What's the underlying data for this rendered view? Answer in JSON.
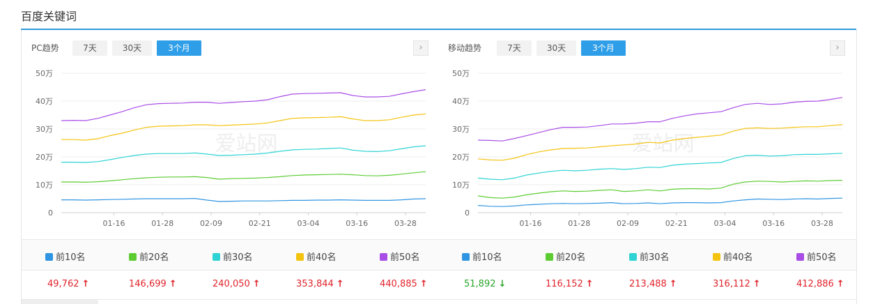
{
  "page": {
    "title": "百度关键词"
  },
  "colors": {
    "accent": "#2d9ad9",
    "up": "#e0232b",
    "down": "#2aa52a"
  },
  "watermark": "爱站网",
  "chart_data": [
    {
      "type": "line",
      "heading": "PC趋势",
      "tabs": [
        {
          "label": "7天",
          "active": false
        },
        {
          "label": "30天",
          "active": false
        },
        {
          "label": "3个月",
          "active": true
        }
      ],
      "next_icon": "chevron-right-icon",
      "ylim": [
        0,
        50
      ],
      "yticks": [
        "0",
        "10万",
        "20万",
        "30万",
        "40万",
        "50万"
      ],
      "xlim": [
        0,
        90
      ],
      "xticks": [
        {
          "x": 13,
          "label": "01-16"
        },
        {
          "x": 25,
          "label": "01-28"
        },
        {
          "x": 37,
          "label": "02-09"
        },
        {
          "x": 49,
          "label": "02-21"
        },
        {
          "x": 61,
          "label": "03-04"
        },
        {
          "x": 73,
          "label": "03-16"
        },
        {
          "x": 85,
          "label": "03-28"
        }
      ],
      "x": [
        0,
        3,
        6,
        9,
        12,
        15,
        18,
        21,
        24,
        27,
        30,
        33,
        36,
        39,
        42,
        45,
        48,
        51,
        54,
        57,
        60,
        63,
        66,
        69,
        72,
        75,
        78,
        81,
        84,
        87,
        90
      ],
      "series": [
        {
          "name": "前10名",
          "color": "#2f95e2",
          "values": [
            4.6,
            4.6,
            4.5,
            4.6,
            4.7,
            4.8,
            4.9,
            5.0,
            5.0,
            5.0,
            5.0,
            5.1,
            4.5,
            4.0,
            4.1,
            4.2,
            4.2,
            4.2,
            4.3,
            4.4,
            4.4,
            4.5,
            4.5,
            4.6,
            4.5,
            4.4,
            4.4,
            4.4,
            4.6,
            4.9,
            5.0
          ]
        },
        {
          "name": "前20名",
          "color": "#5ccc32",
          "values": [
            11.0,
            11.0,
            10.9,
            11.1,
            11.4,
            11.8,
            12.2,
            12.5,
            12.7,
            12.8,
            12.8,
            12.9,
            12.6,
            12.0,
            12.2,
            12.3,
            12.4,
            12.6,
            12.9,
            13.3,
            13.5,
            13.6,
            13.7,
            13.8,
            13.6,
            13.3,
            13.2,
            13.4,
            13.8,
            14.3,
            14.7
          ]
        },
        {
          "name": "前30名",
          "color": "#2fd3d3",
          "values": [
            18.1,
            18.1,
            18.0,
            18.3,
            19.0,
            19.8,
            20.5,
            21.0,
            21.2,
            21.2,
            21.2,
            21.4,
            21.0,
            20.5,
            20.6,
            20.8,
            21.0,
            21.4,
            22.0,
            22.5,
            22.7,
            22.8,
            23.0,
            23.2,
            22.4,
            22.0,
            21.9,
            22.2,
            22.9,
            23.6,
            24.0
          ]
        },
        {
          "name": "前40名",
          "color": "#f4c310",
          "values": [
            26.2,
            26.2,
            26.0,
            26.5,
            27.6,
            28.5,
            29.6,
            30.6,
            31.0,
            31.1,
            31.2,
            31.5,
            31.5,
            31.2,
            31.4,
            31.6,
            31.8,
            32.2,
            33.0,
            33.8,
            34.0,
            34.1,
            34.2,
            34.4,
            33.6,
            33.0,
            33.0,
            33.3,
            34.2,
            35.0,
            35.4
          ]
        },
        {
          "name": "前50名",
          "color": "#a84de6",
          "values": [
            33.0,
            33.1,
            33.0,
            33.8,
            35.0,
            36.2,
            37.6,
            38.7,
            39.1,
            39.2,
            39.3,
            39.6,
            39.6,
            39.2,
            39.5,
            39.8,
            40.0,
            40.5,
            41.6,
            42.5,
            42.7,
            42.8,
            42.9,
            43.0,
            42.0,
            41.5,
            41.5,
            41.7,
            42.6,
            43.4,
            44.1
          ]
        }
      ],
      "totals": [
        {
          "value": "49,762",
          "trend": "up"
        },
        {
          "value": "146,699",
          "trend": "up"
        },
        {
          "value": "240,050",
          "trend": "up"
        },
        {
          "value": "353,844",
          "trend": "up"
        },
        {
          "value": "440,885",
          "trend": "up"
        }
      ]
    },
    {
      "type": "line",
      "heading": "移动趋势",
      "tabs": [
        {
          "label": "7天",
          "active": false
        },
        {
          "label": "30天",
          "active": false
        },
        {
          "label": "3个月",
          "active": true
        }
      ],
      "next_icon": "chevron-right-icon",
      "ylim": [
        0,
        50
      ],
      "yticks": [
        "0",
        "10万",
        "20万",
        "30万",
        "40万",
        "50万"
      ],
      "xlim": [
        0,
        90
      ],
      "xticks": [
        {
          "x": 13,
          "label": "01-16"
        },
        {
          "x": 25,
          "label": "01-28"
        },
        {
          "x": 37,
          "label": "02-09"
        },
        {
          "x": 49,
          "label": "02-21"
        },
        {
          "x": 61,
          "label": "03-04"
        },
        {
          "x": 73,
          "label": "03-16"
        },
        {
          "x": 85,
          "label": "03-28"
        }
      ],
      "x": [
        0,
        3,
        6,
        9,
        12,
        15,
        18,
        21,
        24,
        27,
        30,
        33,
        36,
        39,
        42,
        45,
        48,
        51,
        54,
        57,
        60,
        63,
        66,
        69,
        72,
        75,
        78,
        81,
        84,
        87,
        90
      ],
      "series": [
        {
          "name": "前10名",
          "color": "#2f95e2",
          "values": [
            2.6,
            2.3,
            2.2,
            2.4,
            2.8,
            3.0,
            3.2,
            3.3,
            3.2,
            3.3,
            3.4,
            3.6,
            3.2,
            3.3,
            3.5,
            3.2,
            3.5,
            3.6,
            3.6,
            3.5,
            3.6,
            4.2,
            4.6,
            4.9,
            4.8,
            4.7,
            4.9,
            5.0,
            4.9,
            5.1,
            5.2
          ]
        },
        {
          "name": "前20名",
          "color": "#5ccc32",
          "values": [
            6.0,
            5.4,
            5.2,
            5.6,
            6.4,
            7.0,
            7.5,
            7.8,
            7.6,
            7.7,
            8.0,
            8.2,
            7.6,
            7.8,
            8.2,
            7.8,
            8.4,
            8.6,
            8.6,
            8.5,
            8.8,
            10.2,
            11.0,
            11.3,
            11.2,
            11.0,
            11.2,
            11.4,
            11.3,
            11.5,
            11.6
          ]
        },
        {
          "name": "前30名",
          "color": "#2fd3d3",
          "values": [
            12.4,
            12.0,
            11.8,
            12.4,
            13.5,
            14.2,
            14.8,
            15.2,
            15.0,
            15.2,
            15.6,
            15.8,
            15.5,
            15.8,
            16.3,
            16.2,
            17.0,
            17.4,
            17.6,
            17.8,
            18.0,
            19.4,
            20.4,
            20.6,
            20.3,
            20.4,
            20.8,
            20.9,
            20.9,
            21.1,
            21.3
          ]
        },
        {
          "name": "前40名",
          "color": "#f4c310",
          "values": [
            19.3,
            18.9,
            18.8,
            19.5,
            20.8,
            21.8,
            22.5,
            23.0,
            23.1,
            23.2,
            23.6,
            24.0,
            24.3,
            24.6,
            25.2,
            25.0,
            26.0,
            26.6,
            27.0,
            27.4,
            27.8,
            29.2,
            30.2,
            30.4,
            30.2,
            30.3,
            30.6,
            30.8,
            30.8,
            31.2,
            31.6
          ]
        },
        {
          "name": "前50名",
          "color": "#a84de6",
          "values": [
            26.0,
            25.9,
            25.7,
            26.6,
            27.6,
            28.7,
            29.8,
            30.6,
            30.6,
            30.7,
            31.2,
            31.8,
            31.8,
            32.1,
            32.6,
            32.6,
            33.8,
            34.7,
            35.4,
            35.8,
            36.2,
            37.6,
            38.8,
            39.2,
            38.8,
            39.0,
            39.6,
            39.9,
            40.0,
            40.6,
            41.3
          ]
        }
      ],
      "totals": [
        {
          "value": "51,892",
          "trend": "down"
        },
        {
          "value": "116,152",
          "trend": "up"
        },
        {
          "value": "213,488",
          "trend": "up"
        },
        {
          "value": "316,112",
          "trend": "up"
        },
        {
          "value": "412,886",
          "trend": "up"
        }
      ]
    }
  ]
}
